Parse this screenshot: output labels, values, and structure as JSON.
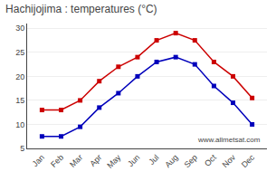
{
  "chart_data": {
    "type": "line",
    "title": "Hachijojima : temperatures (°C)",
    "categories": [
      "Jan",
      "Feb",
      "Mar",
      "Apr",
      "May",
      "Jun",
      "Jul",
      "Aug",
      "Sep",
      "Oct",
      "Nov",
      "Dec"
    ],
    "series": [
      {
        "color": "#cc0000",
        "values": [
          13,
          13,
          15,
          19,
          22,
          24,
          27.5,
          29,
          27.5,
          23,
          20,
          15.5
        ],
        "marker": "square",
        "line_style": "solid"
      },
      {
        "color": "#0000bb",
        "values": [
          7.5,
          7.5,
          9.5,
          13.5,
          16.5,
          20,
          23,
          24,
          22.5,
          18,
          14.5,
          10
        ],
        "marker": "square",
        "line_style": "solid"
      }
    ],
    "ylim": [
      5,
      31
    ],
    "yticks": [
      5,
      10,
      15,
      20,
      25,
      30
    ],
    "grid": true,
    "annotations": [
      "www.allmetsat.com"
    ]
  }
}
